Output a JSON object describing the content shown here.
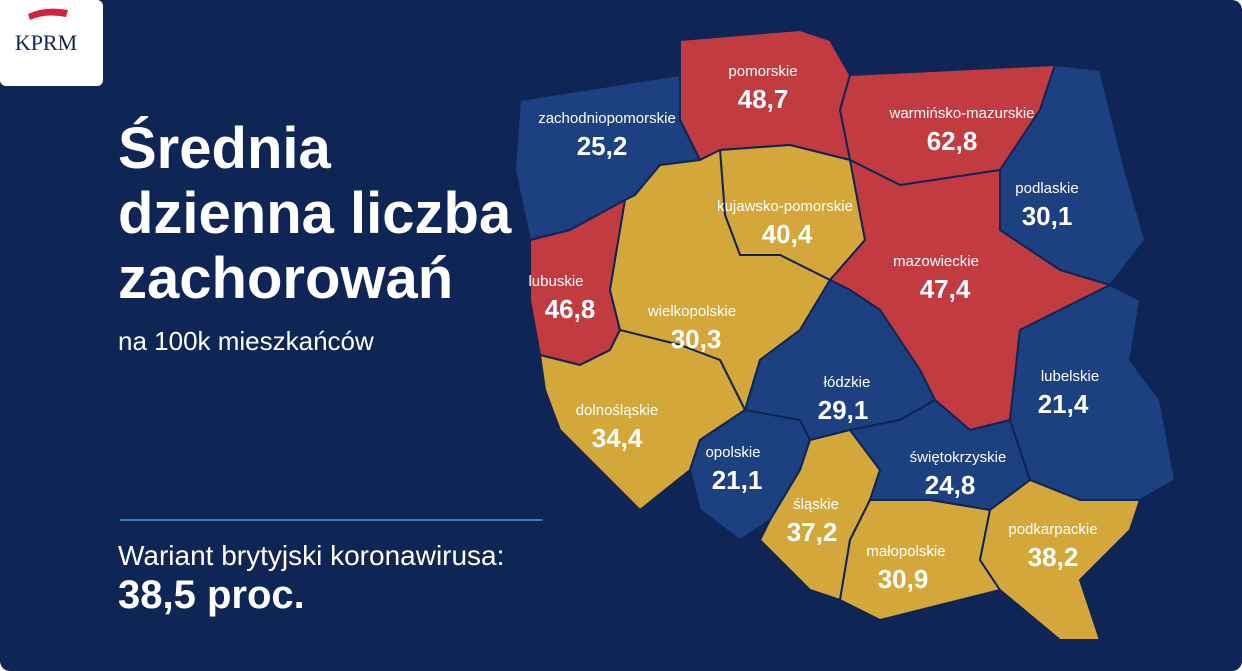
{
  "logo": "KPRM",
  "title_lines": [
    "Średnia",
    "dzienna liczba",
    "zachorowań"
  ],
  "subtitle": "na 100k mieszkańców",
  "variant": {
    "label": "Wariant brytyjski koronawirusa:",
    "value": "38,5 proc."
  },
  "regions": [
    {
      "name": "pomorskie",
      "value": "48,7"
    },
    {
      "name": "zachodniopomorskie",
      "value": "25,2"
    },
    {
      "name": "warmińsko-mazurskie",
      "value": "62,8"
    },
    {
      "name": "podlaskie",
      "value": "30,1"
    },
    {
      "name": "kujawsko-pomorskie",
      "value": "40,4"
    },
    {
      "name": "mazowieckie",
      "value": "47,4"
    },
    {
      "name": "lubuskie",
      "value": "46,8"
    },
    {
      "name": "wielkopolskie",
      "value": "30,3"
    },
    {
      "name": "dolnośląskie",
      "value": "34,4"
    },
    {
      "name": "opolskie",
      "value": "21,1"
    },
    {
      "name": "łódzkie",
      "value": "29,1"
    },
    {
      "name": "śląskie",
      "value": "37,2"
    },
    {
      "name": "świętokrzyskie",
      "value": "24,8"
    },
    {
      "name": "lubelskie",
      "value": "21,4"
    },
    {
      "name": "małopolskie",
      "value": "30,9"
    },
    {
      "name": "podkarpackie",
      "value": "38,2"
    }
  ]
}
